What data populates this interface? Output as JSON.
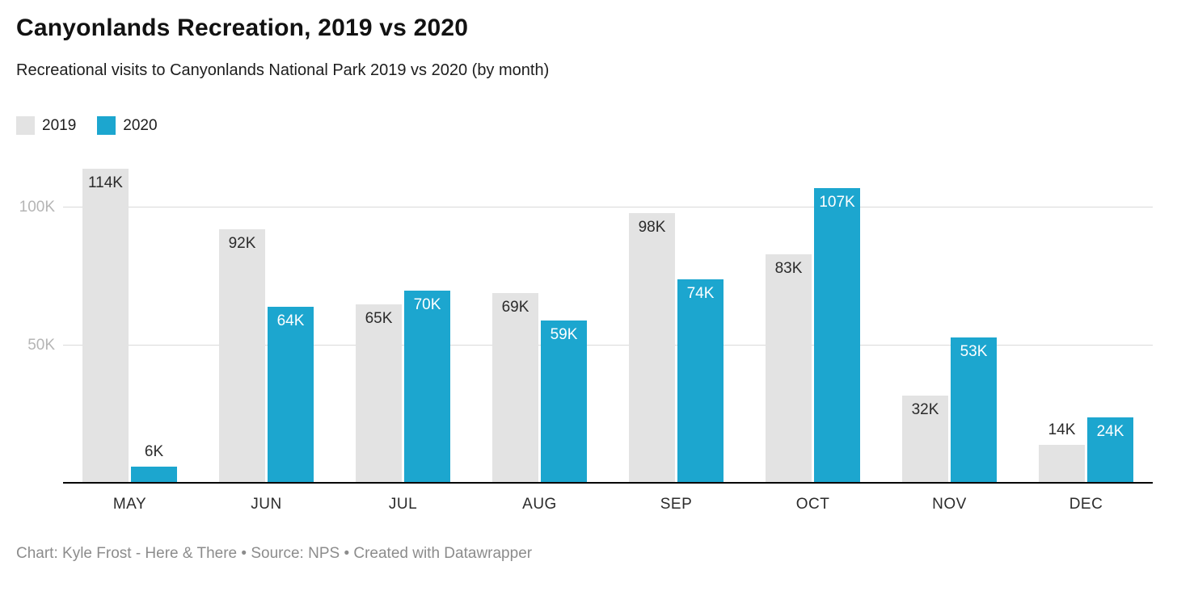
{
  "chart_data": {
    "type": "bar",
    "title": "Canyonlands Recreation, 2019 vs 2020",
    "subtitle": "Recreational visits to Canyonlands National Park 2019 vs 2020 (by month)",
    "categories": [
      "MAY",
      "JUN",
      "JUL",
      "AUG",
      "SEP",
      "OCT",
      "NOV",
      "DEC"
    ],
    "series": [
      {
        "name": "2019",
        "color": "#e3e3e3",
        "values": [
          114,
          92,
          65,
          69,
          98,
          83,
          32,
          14
        ]
      },
      {
        "name": "2020",
        "color": "#1ca6cf",
        "values": [
          6,
          64,
          70,
          59,
          74,
          107,
          53,
          24
        ]
      }
    ],
    "unit": "K",
    "xlabel": "",
    "ylabel": "",
    "ylim": [
      0,
      118
    ],
    "y_ticks": [
      {
        "label": "50K",
        "value": 50
      },
      {
        "label": "100K",
        "value": 100
      }
    ],
    "grid": true,
    "legend_position": "top-left"
  },
  "footer": {
    "credit": "Chart: Kyle Frost - Here & There • Source: NPS • Created with Datawrapper"
  }
}
